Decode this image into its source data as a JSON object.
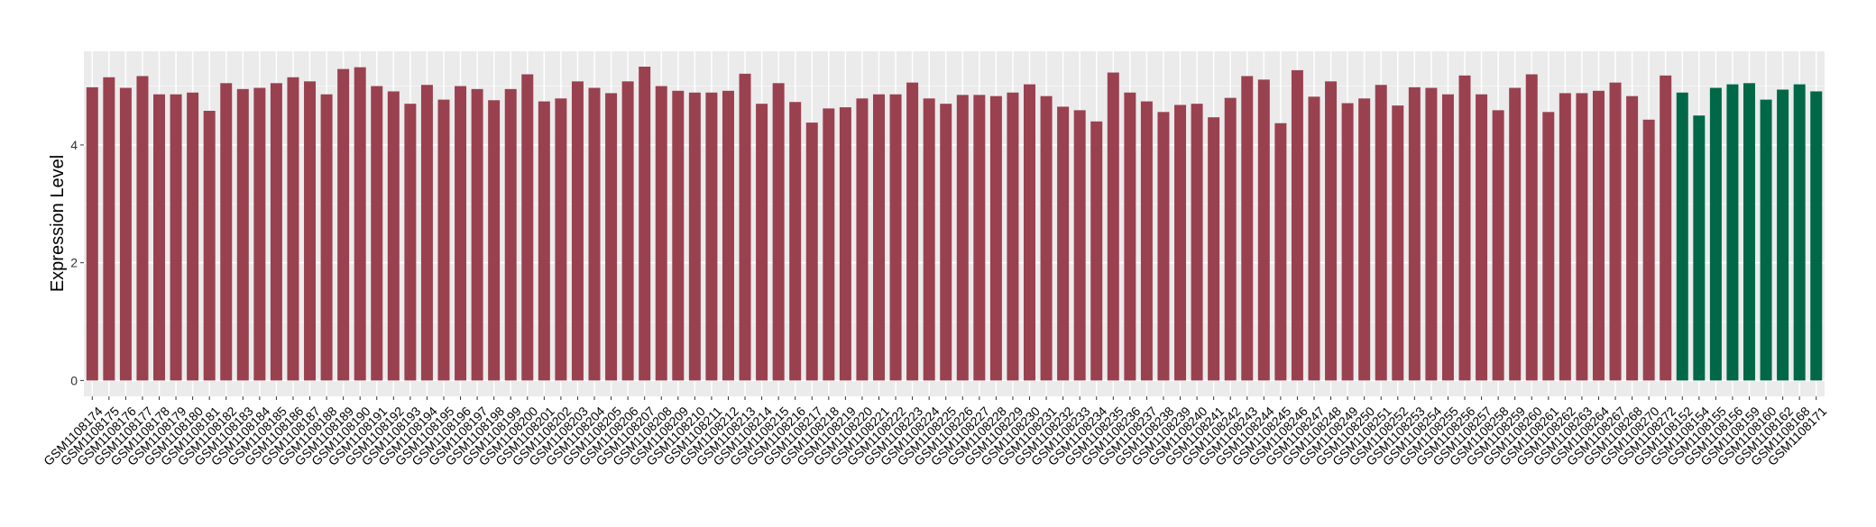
{
  "chart_data": {
    "type": "bar",
    "title": "",
    "xlabel": "",
    "ylabel": "Expression Level",
    "ylim": [
      -0.27,
      5.59
    ],
    "yticks": [
      0,
      2,
      4
    ],
    "grid": true,
    "legend": "none",
    "colors": {
      "group1": "#9A4150",
      "group2": "#006847",
      "panel": "#EBEBEB",
      "grid": "#FFFFFF"
    },
    "categories": [
      "GSM1108174",
      "GSM1108175",
      "GSM1108176",
      "GSM1108177",
      "GSM1108178",
      "GSM1108179",
      "GSM1108180",
      "GSM1108181",
      "GSM1108182",
      "GSM1108183",
      "GSM1108184",
      "GSM1108185",
      "GSM1108186",
      "GSM1108187",
      "GSM1108188",
      "GSM1108189",
      "GSM1108190",
      "GSM1108191",
      "GSM1108192",
      "GSM1108193",
      "GSM1108194",
      "GSM1108195",
      "GSM1108196",
      "GSM1108197",
      "GSM1108198",
      "GSM1108199",
      "GSM1108200",
      "GSM1108201",
      "GSM1108202",
      "GSM1108203",
      "GSM1108204",
      "GSM1108205",
      "GSM1108206",
      "GSM1108207",
      "GSM1108208",
      "GSM1108209",
      "GSM1108210",
      "GSM1108211",
      "GSM1108212",
      "GSM1108213",
      "GSM1108214",
      "GSM1108215",
      "GSM1108216",
      "GSM1108217",
      "GSM1108218",
      "GSM1108219",
      "GSM1108220",
      "GSM1108221",
      "GSM1108222",
      "GSM1108223",
      "GSM1108224",
      "GSM1108225",
      "GSM1108226",
      "GSM1108227",
      "GSM1108228",
      "GSM1108229",
      "GSM1108230",
      "GSM1108231",
      "GSM1108232",
      "GSM1108233",
      "GSM1108234",
      "GSM1108235",
      "GSM1108236",
      "GSM1108237",
      "GSM1108238",
      "GSM1108239",
      "GSM1108240",
      "GSM1108241",
      "GSM1108242",
      "GSM1108243",
      "GSM1108244",
      "GSM1108245",
      "GSM1108246",
      "GSM1108247",
      "GSM1108248",
      "GSM1108249",
      "GSM1108250",
      "GSM1108251",
      "GSM1108252",
      "GSM1108253",
      "GSM1108254",
      "GSM1108255",
      "GSM1108256",
      "GSM1108257",
      "GSM1108258",
      "GSM1108259",
      "GSM1108260",
      "GSM1108261",
      "GSM1108262",
      "GSM1108263",
      "GSM1108264",
      "GSM1108267",
      "GSM1108268",
      "GSM1108270",
      "GSM1108272",
      "GSM1108152",
      "GSM1108154",
      "GSM1108155",
      "GSM1108156",
      "GSM1108159",
      "GSM1108160",
      "GSM1108162",
      "GSM1108168",
      "GSM1108171"
    ],
    "values": [
      4.98,
      5.15,
      4.97,
      5.17,
      4.86,
      4.86,
      4.89,
      4.58,
      5.05,
      4.95,
      4.97,
      5.05,
      5.15,
      5.08,
      4.86,
      5.29,
      5.32,
      5.0,
      4.91,
      4.7,
      5.02,
      4.77,
      5.0,
      4.95,
      4.76,
      4.95,
      5.2,
      4.74,
      4.79,
      5.08,
      4.97,
      4.88,
      5.08,
      5.33,
      5.0,
      4.92,
      4.89,
      4.89,
      4.92,
      5.21,
      4.7,
      5.05,
      4.73,
      4.38,
      4.62,
      4.64,
      4.79,
      4.86,
      4.86,
      5.06,
      4.79,
      4.7,
      4.85,
      4.85,
      4.83,
      4.89,
      5.03,
      4.83,
      4.65,
      4.59,
      4.4,
      5.23,
      4.89,
      4.74,
      4.56,
      4.68,
      4.7,
      4.47,
      4.8,
      5.17,
      5.11,
      4.37,
      5.27,
      4.82,
      5.08,
      4.71,
      4.79,
      5.02,
      4.67,
      4.98,
      4.97,
      4.86,
      5.18,
      4.86,
      4.59,
      4.97,
      5.2,
      4.56,
      4.88,
      4.88,
      4.92,
      5.06,
      4.83,
      4.43,
      5.18,
      4.89,
      4.5,
      4.97,
      5.03,
      5.05,
      4.77,
      4.94,
      5.03,
      4.91
    ],
    "groups": [
      "group1",
      "group1",
      "group1",
      "group1",
      "group1",
      "group1",
      "group1",
      "group1",
      "group1",
      "group1",
      "group1",
      "group1",
      "group1",
      "group1",
      "group1",
      "group1",
      "group1",
      "group1",
      "group1",
      "group1",
      "group1",
      "group1",
      "group1",
      "group1",
      "group1",
      "group1",
      "group1",
      "group1",
      "group1",
      "group1",
      "group1",
      "group1",
      "group1",
      "group1",
      "group1",
      "group1",
      "group1",
      "group1",
      "group1",
      "group1",
      "group1",
      "group1",
      "group1",
      "group1",
      "group1",
      "group1",
      "group1",
      "group1",
      "group1",
      "group1",
      "group1",
      "group1",
      "group1",
      "group1",
      "group1",
      "group1",
      "group1",
      "group1",
      "group1",
      "group1",
      "group1",
      "group1",
      "group1",
      "group1",
      "group1",
      "group1",
      "group1",
      "group1",
      "group1",
      "group1",
      "group1",
      "group1",
      "group1",
      "group1",
      "group1",
      "group1",
      "group1",
      "group1",
      "group1",
      "group1",
      "group1",
      "group1",
      "group1",
      "group1",
      "group1",
      "group1",
      "group1",
      "group1",
      "group1",
      "group1",
      "group1",
      "group1",
      "group1",
      "group1",
      "group1",
      "group2",
      "group2",
      "group2",
      "group2",
      "group2",
      "group2",
      "group2",
      "group2",
      "group2"
    ]
  }
}
